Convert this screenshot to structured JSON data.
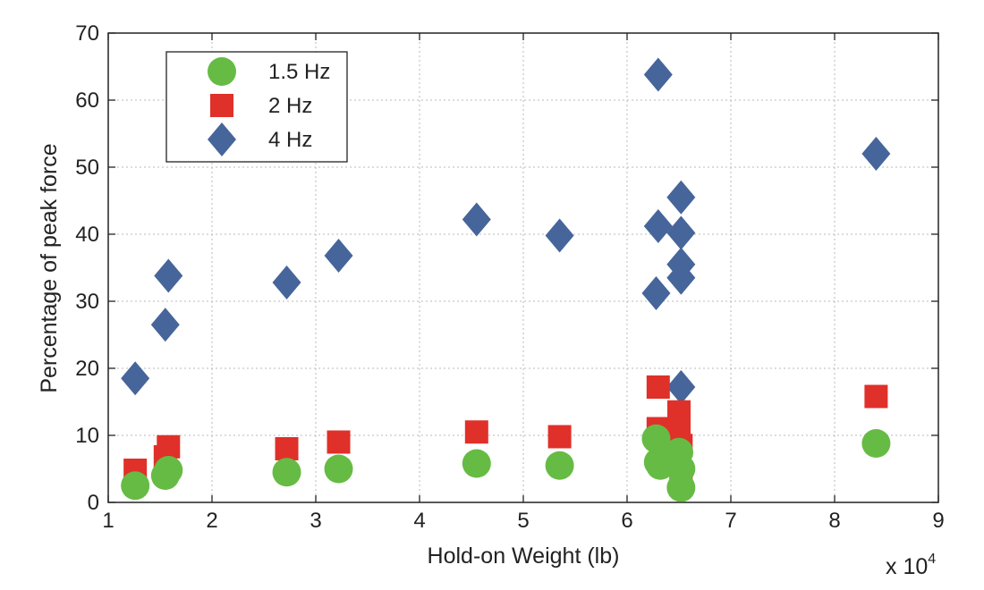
{
  "chart_data": {
    "type": "scatter",
    "title": "",
    "xlabel": "Hold-on Weight (lb)",
    "ylabel": "Percentage of peak force",
    "x_multiplier_label": "x 10",
    "x_multiplier_exponent": "4",
    "xlim": [
      1,
      9
    ],
    "ylim": [
      0,
      70
    ],
    "xticks": [
      1,
      2,
      3,
      4,
      5,
      6,
      7,
      8,
      9
    ],
    "yticks": [
      0,
      10,
      20,
      30,
      40,
      50,
      60,
      70
    ],
    "grid": true,
    "legend_position": "top-left",
    "series": [
      {
        "name": "1.5 Hz",
        "marker": "circle",
        "color": "#66bb44",
        "points": [
          {
            "x": 1.26,
            "y": 2.5
          },
          {
            "x": 1.55,
            "y": 4.0
          },
          {
            "x": 1.58,
            "y": 4.8
          },
          {
            "x": 2.72,
            "y": 4.5
          },
          {
            "x": 3.22,
            "y": 5.0
          },
          {
            "x": 4.55,
            "y": 5.8
          },
          {
            "x": 5.35,
            "y": 5.5
          },
          {
            "x": 6.28,
            "y": 9.5
          },
          {
            "x": 6.3,
            "y": 6.0
          },
          {
            "x": 6.32,
            "y": 5.5
          },
          {
            "x": 6.5,
            "y": 7.5
          },
          {
            "x": 6.52,
            "y": 5.0
          },
          {
            "x": 6.52,
            "y": 2.2
          },
          {
            "x": 8.4,
            "y": 8.8
          }
        ]
      },
      {
        "name": "2 Hz",
        "marker": "square",
        "color": "#e0302a",
        "points": [
          {
            "x": 1.26,
            "y": 4.8
          },
          {
            "x": 1.55,
            "y": 6.8
          },
          {
            "x": 1.58,
            "y": 8.3
          },
          {
            "x": 2.72,
            "y": 8.0
          },
          {
            "x": 3.22,
            "y": 9.0
          },
          {
            "x": 4.55,
            "y": 10.5
          },
          {
            "x": 5.35,
            "y": 9.8
          },
          {
            "x": 6.3,
            "y": 17.2
          },
          {
            "x": 6.3,
            "y": 11.0
          },
          {
            "x": 6.35,
            "y": 10.2
          },
          {
            "x": 6.5,
            "y": 13.5
          },
          {
            "x": 6.5,
            "y": 11.0
          },
          {
            "x": 6.52,
            "y": 8.5
          },
          {
            "x": 6.52,
            "y": 4.2
          },
          {
            "x": 8.4,
            "y": 15.8
          }
        ]
      },
      {
        "name": "4 Hz",
        "marker": "diamond",
        "color": "#46659a",
        "points": [
          {
            "x": 1.26,
            "y": 18.5
          },
          {
            "x": 1.55,
            "y": 26.5
          },
          {
            "x": 1.58,
            "y": 33.8
          },
          {
            "x": 2.72,
            "y": 32.8
          },
          {
            "x": 3.22,
            "y": 36.8
          },
          {
            "x": 4.55,
            "y": 42.2
          },
          {
            "x": 5.35,
            "y": 39.8
          },
          {
            "x": 6.3,
            "y": 63.8
          },
          {
            "x": 6.3,
            "y": 41.2
          },
          {
            "x": 6.28,
            "y": 31.2
          },
          {
            "x": 6.52,
            "y": 45.5
          },
          {
            "x": 6.52,
            "y": 40.2
          },
          {
            "x": 6.52,
            "y": 35.5
          },
          {
            "x": 6.52,
            "y": 33.5
          },
          {
            "x": 6.52,
            "y": 17.2
          },
          {
            "x": 8.4,
            "y": 52.0
          }
        ]
      }
    ]
  }
}
